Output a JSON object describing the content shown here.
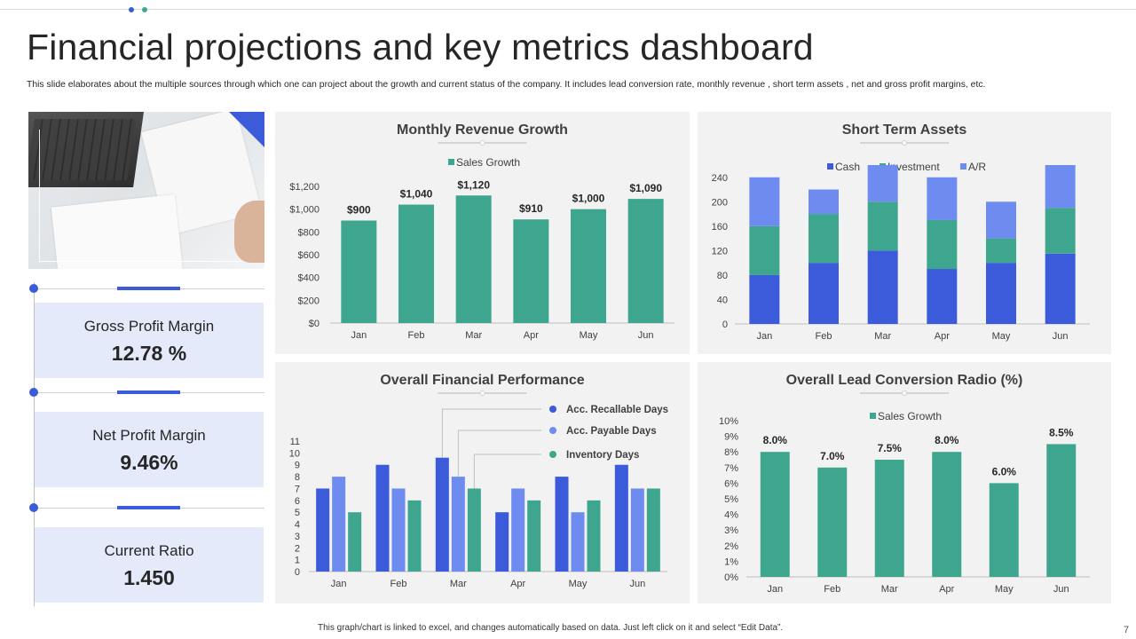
{
  "slide": {
    "title": "Financial projections and key metrics dashboard",
    "subtitle": "This slide elaborates about the multiple  sources through which one can project about the growth and current status of the company. It includes lead conversion rate, monthly revenue , short term assets , net and gross profit margins, etc.",
    "footer": "This graph/chart is linked to excel, and changes automatically based on data. Just left click on it and select “Edit Data”.",
    "page_number": "7"
  },
  "colors": {
    "green": "#3ea68f",
    "blue": "#3b5bdb",
    "light_blue": "#6e8cef",
    "panel_bg": "#f2f2f2",
    "metric_bg": "#e4eafa"
  },
  "metrics": [
    {
      "label": "Gross Profit Margin",
      "value": "12.78 %"
    },
    {
      "label": "Net Profit Margin",
      "value": "9.46%"
    },
    {
      "label": "Current Ratio",
      "value": "1.450"
    }
  ],
  "chart_data": [
    {
      "id": "revenue",
      "type": "bar",
      "title": "Monthly Revenue Growth",
      "legend": [
        "Sales Growth"
      ],
      "legend_position": "top",
      "categories": [
        "Jan",
        "Feb",
        "Mar",
        "Apr",
        "May",
        "Jun"
      ],
      "values": [
        900,
        1040,
        1120,
        910,
        1000,
        1090
      ],
      "data_labels": [
        "$900",
        "$1,040",
        "$1,120",
        "$910",
        "$1,000",
        "$1,090"
      ],
      "y_ticks": [
        0,
        200,
        400,
        600,
        800,
        1000,
        1200
      ],
      "y_tick_labels": [
        "$0",
        "$200",
        "$400",
        "$600",
        "$800",
        "$1,000",
        "$1,200"
      ],
      "ylim": [
        0,
        1200
      ]
    },
    {
      "id": "assets",
      "type": "bar",
      "stacked": true,
      "title": "Short Term Assets",
      "legend_position": "top",
      "categories": [
        "Jan",
        "Feb",
        "Mar",
        "Apr",
        "May",
        "Jun"
      ],
      "series": [
        {
          "name": "Cash",
          "values": [
            80,
            100,
            120,
            90,
            100,
            115
          ]
        },
        {
          "name": "Investment",
          "values": [
            80,
            80,
            80,
            80,
            40,
            75
          ]
        },
        {
          "name": "A/R",
          "values": [
            80,
            40,
            60,
            70,
            60,
            70
          ]
        }
      ],
      "y_ticks": [
        0,
        40,
        80,
        120,
        160,
        200,
        240
      ],
      "ylim": [
        0,
        260
      ]
    },
    {
      "id": "performance",
      "type": "bar",
      "title": "Overall Financial Performance",
      "legend_position": "right-callouts",
      "categories": [
        "Jan",
        "Feb",
        "Mar",
        "Apr",
        "May",
        "Jun"
      ],
      "series": [
        {
          "name": "Acc. Recallable Days",
          "values": [
            7,
            9,
            9.6,
            5,
            8,
            9
          ]
        },
        {
          "name": "Acc. Payable Days",
          "values": [
            8,
            7,
            8,
            7,
            5,
            7
          ]
        },
        {
          "name": "Inventory Days",
          "values": [
            5,
            6,
            7,
            6,
            6,
            7
          ]
        }
      ],
      "y_ticks": [
        0,
        1,
        2,
        3,
        4,
        5,
        6,
        7,
        8,
        9,
        10,
        11
      ],
      "ylim": [
        0,
        11
      ]
    },
    {
      "id": "lead",
      "type": "bar",
      "title": "Overall Lead Conversion Radio (%)",
      "legend": [
        "Sales Growth"
      ],
      "legend_position": "top",
      "categories": [
        "Jan",
        "Feb",
        "Mar",
        "Apr",
        "May",
        "Jun"
      ],
      "values": [
        8.0,
        7.0,
        7.5,
        8.0,
        6.0,
        8.5
      ],
      "data_labels": [
        "8.0%",
        "7.0%",
        "7.5%",
        "8.0%",
        "6.0%",
        "8.5%"
      ],
      "y_ticks": [
        0,
        1,
        2,
        3,
        4,
        5,
        6,
        7,
        8,
        9,
        10
      ],
      "y_tick_labels": [
        "0%",
        "1%",
        "2%",
        "3%",
        "4%",
        "5%",
        "6%",
        "7%",
        "8%",
        "9%",
        "10%"
      ],
      "ylim": [
        0,
        10
      ]
    }
  ]
}
